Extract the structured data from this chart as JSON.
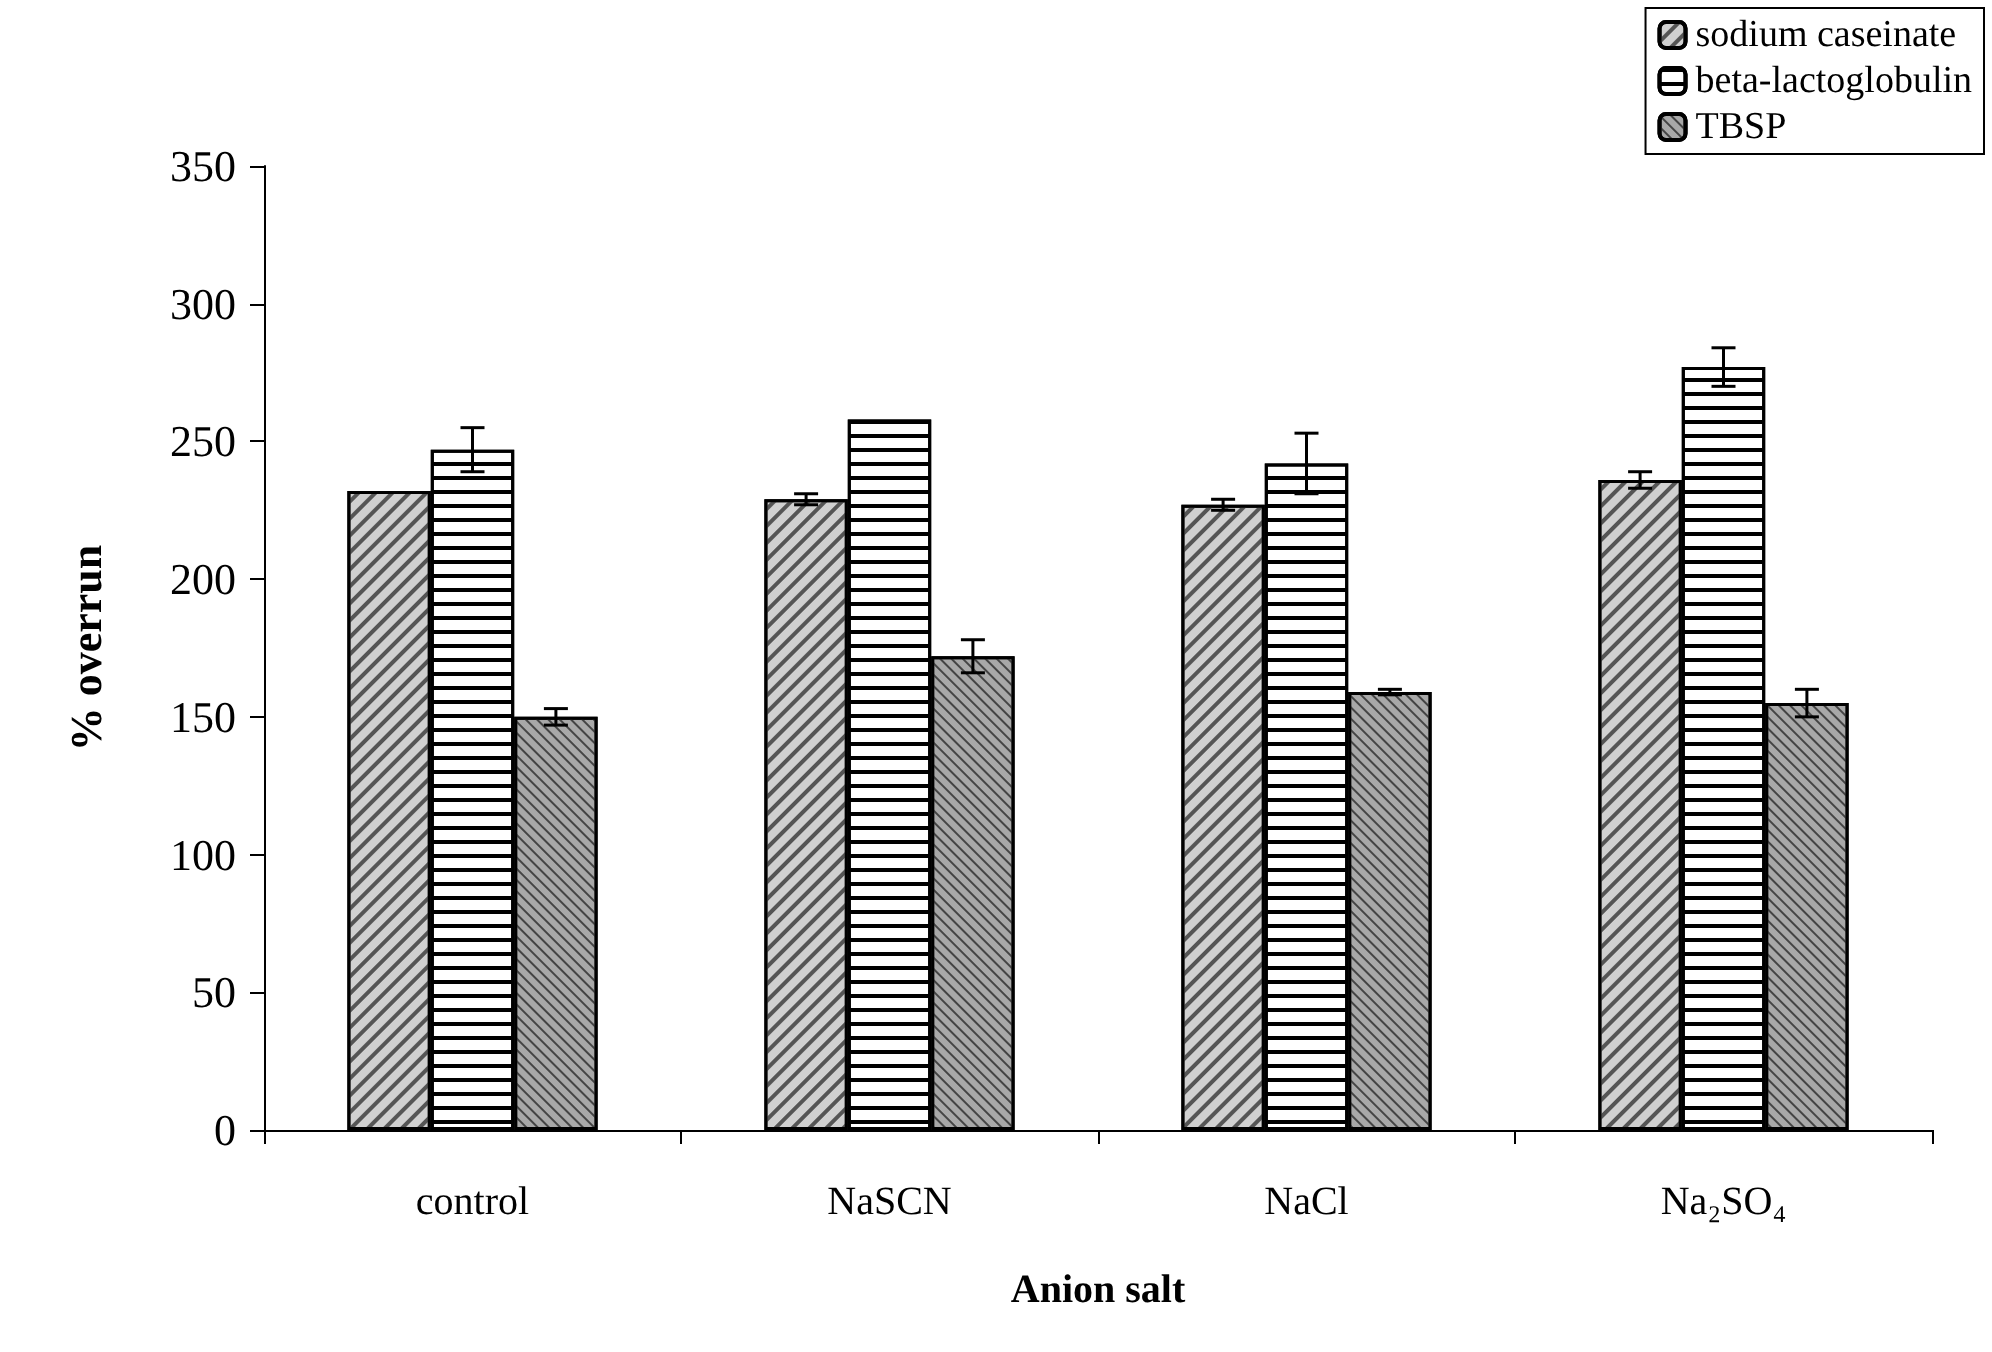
{
  "chart_data": {
    "type": "bar",
    "xlabel": "Anion salt",
    "ylabel": "% overrun",
    "categories": [
      "control",
      "NaSCN",
      "NaCl",
      "Na₂SO₄"
    ],
    "series": [
      {
        "name": "sodium caseinate",
        "color": "#d0d0d0",
        "values": [
          232,
          229,
          227,
          236
        ],
        "errors": [
          null,
          2,
          2,
          3
        ]
      },
      {
        "name": "beta-lactoglobulin",
        "color": "#ffffff",
        "values": [
          247,
          258,
          242,
          277
        ],
        "errors": [
          8,
          null,
          11,
          7
        ]
      },
      {
        "name": "TBSP",
        "color": "#a8a8a8",
        "values": [
          150,
          172,
          159,
          155
        ],
        "errors": [
          3,
          6,
          1,
          5
        ]
      }
    ],
    "ylim": [
      0,
      350
    ],
    "yticks": [
      0,
      50,
      100,
      150,
      200,
      250,
      300,
      350
    ],
    "grid": false,
    "legend": "top right"
  }
}
